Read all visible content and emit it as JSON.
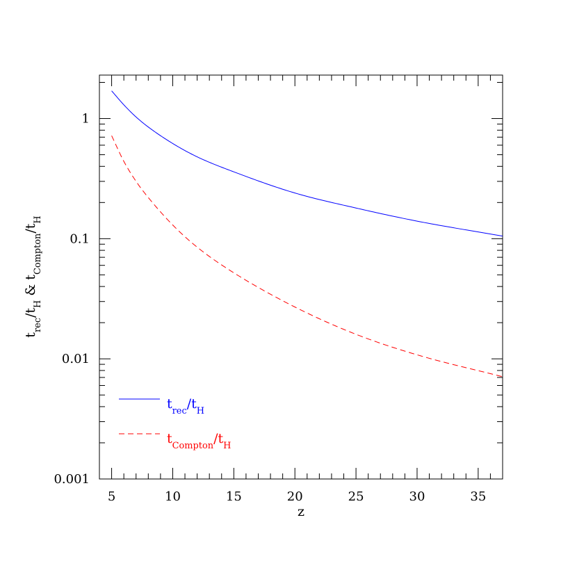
{
  "chart_data": {
    "type": "line",
    "title": "",
    "xlabel": "z",
    "ylabel": {
      "parts": [
        "t",
        "rec",
        "/t",
        "H",
        " & t",
        "Compton",
        "/t",
        "H"
      ]
    },
    "xlim": [
      4,
      37
    ],
    "ylim": [
      0.001,
      2.3
    ],
    "yscale": "log",
    "grid": false,
    "legend_position": "lower-left",
    "x_ticks": {
      "major": [
        5,
        10,
        15,
        20,
        25,
        30,
        35
      ],
      "labels": [
        "5",
        "10",
        "15",
        "20",
        "25",
        "30",
        "35"
      ]
    },
    "y_ticks": {
      "major": [
        0.001,
        0.01,
        0.1,
        1
      ],
      "labels": [
        "0.001",
        "0.01",
        "0.1",
        "1"
      ]
    },
    "series": [
      {
        "key": "t_rec",
        "legend": {
          "parts": [
            "t",
            "rec",
            "/t",
            "H"
          ]
        },
        "color": "#0000ff",
        "style": "solid",
        "x": [
          5,
          6,
          7,
          8,
          10,
          12,
          15,
          20,
          25,
          30,
          37
        ],
        "y": [
          1.7,
          1.3,
          1.03,
          0.85,
          0.62,
          0.48,
          0.36,
          0.24,
          0.18,
          0.14,
          0.105
        ]
      },
      {
        "key": "t_compton",
        "legend": {
          "parts": [
            "t",
            "Compton",
            "/t",
            "H"
          ]
        },
        "color": "#ff0000",
        "style": "dashed",
        "x": [
          5,
          6,
          7,
          8,
          10,
          12,
          15,
          20,
          25,
          30,
          37
        ],
        "y": [
          0.72,
          0.44,
          0.3,
          0.22,
          0.13,
          0.085,
          0.052,
          0.027,
          0.016,
          0.0108,
          0.0071
        ]
      }
    ]
  }
}
